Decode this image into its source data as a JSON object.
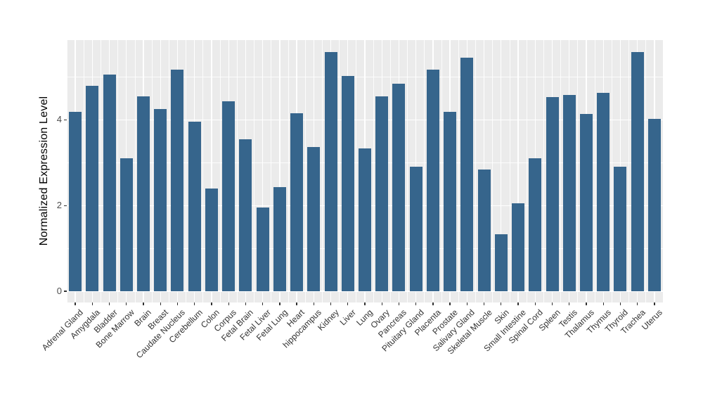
{
  "chart_data": {
    "type": "bar",
    "title": "",
    "xlabel": "",
    "ylabel": "Normalized Expression Level",
    "categories": [
      "Adrenal Gland",
      "Amygdala",
      "Bladder",
      "Bone Marrow",
      "Brain",
      "Breast",
      "Caudate Nucleus",
      "Cerebellum",
      "Colon",
      "Corpus",
      "Fetal Brain",
      "Fetal Liver",
      "Fetal Lung",
      "Heart",
      "hippocampus",
      "Kidney",
      "Liver",
      "Lung",
      "Ovary",
      "Pancreas",
      "Pituitary Gland",
      "Placenta",
      "Prostate",
      "Salivary Gland",
      "Skeletal Muscle",
      "Skin",
      "Small Intestine",
      "Spinal Cord",
      "Spleen",
      "Testis",
      "Thalamus",
      "Thymus",
      "Thyroid",
      "Trachea",
      "Uterus"
    ],
    "values": [
      4.19,
      4.79,
      5.05,
      3.11,
      4.55,
      4.26,
      5.17,
      3.96,
      2.39,
      4.43,
      3.54,
      1.95,
      2.43,
      4.15,
      3.36,
      5.58,
      5.02,
      3.34,
      4.55,
      4.84,
      2.91,
      5.17,
      4.18,
      5.45,
      2.84,
      1.33,
      2.06,
      3.1,
      4.53,
      4.58,
      4.14,
      4.63,
      2.91,
      5.58,
      4.02
    ],
    "yticks": [
      0,
      2,
      4
    ],
    "ytick_labels": [
      "0",
      "2",
      "4"
    ],
    "minor_yticks": [
      1,
      3,
      5
    ],
    "ylim": [
      -0.26,
      5.86
    ],
    "grid": "white major and minor gridlines on gray panel",
    "legend": "none",
    "x_label_angle": 45
  },
  "colors": {
    "bar_fill": "#36658c",
    "panel_background": "#ebebeb",
    "grid": "#ffffff",
    "tick": "#333333",
    "axis_text": "#4d4d4d",
    "x_label_text": "#333333",
    "axis_title_text": "#000000",
    "figure_background": "#ffffff"
  }
}
